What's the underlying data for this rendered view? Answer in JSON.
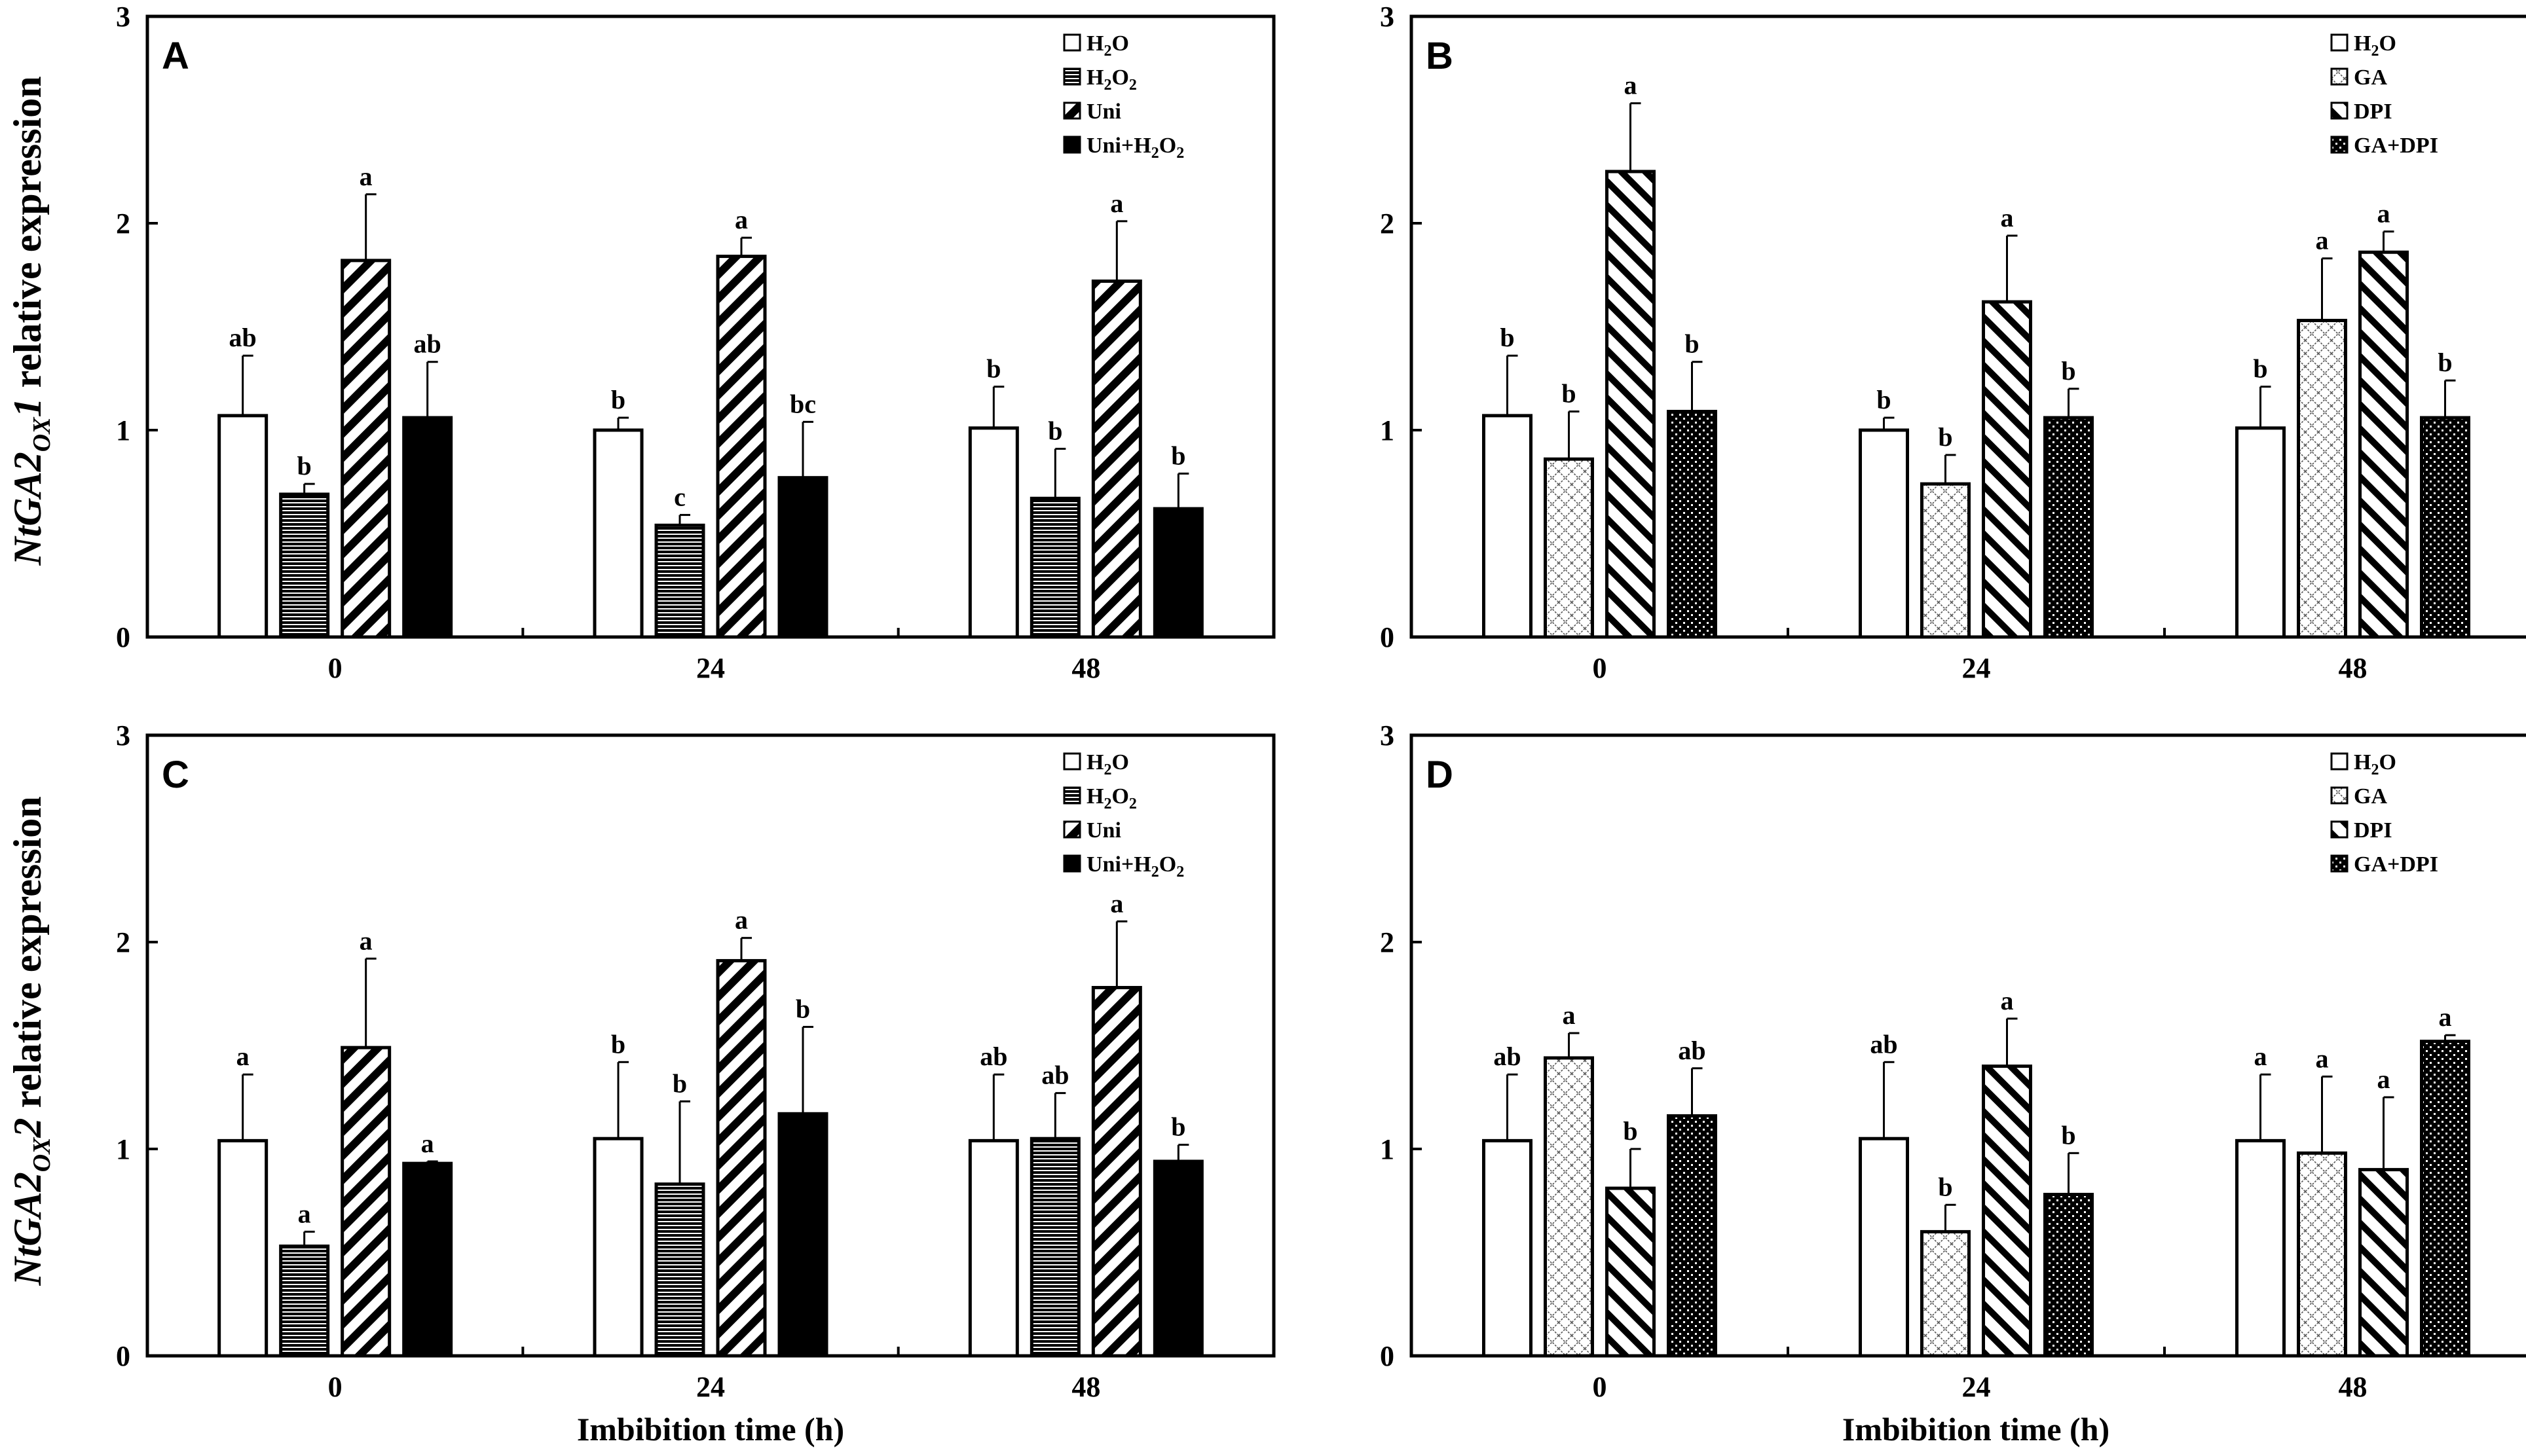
{
  "figure": {
    "ylabel_top": {
      "prefix": "NtGA2",
      "sub": "OX",
      "suffix": "1",
      "rest": " relative expression"
    },
    "ylabel_bottom": {
      "prefix": "NtGA2",
      "sub": "OX",
      "suffix": "2",
      "rest": " relative expression"
    },
    "xlabel": "Imbibition time (h)"
  },
  "chart_data": [
    {
      "type": "bar",
      "panel": "A",
      "categories": [
        "0",
        "24",
        "48"
      ],
      "ylim": [
        0,
        3
      ],
      "yticks": [
        "0",
        "1",
        "2",
        "3"
      ],
      "legend_position": "top-right",
      "series": [
        {
          "name": "H₂O",
          "legend": {
            "parts": [
              {
                "t": "H"
              },
              {
                "t": "2",
                "sub": true
              },
              {
                "t": "O"
              }
            ]
          },
          "pattern": "white",
          "values": [
            1.07,
            1.0,
            1.01
          ],
          "errors": [
            0.29,
            0.06,
            0.2
          ],
          "letters": [
            "ab",
            "b",
            "b"
          ]
        },
        {
          "name": "H₂O₂",
          "legend": {
            "parts": [
              {
                "t": "H"
              },
              {
                "t": "2",
                "sub": true
              },
              {
                "t": "O"
              },
              {
                "t": "2",
                "sub": true
              }
            ]
          },
          "pattern": "hlines",
          "values": [
            0.69,
            0.54,
            0.67
          ],
          "errors": [
            0.05,
            0.05,
            0.24
          ],
          "letters": [
            "b",
            "c",
            "b"
          ]
        },
        {
          "name": "Uni",
          "legend": {
            "parts": [
              {
                "t": "Uni"
              }
            ]
          },
          "pattern": "diag-right",
          "values": [
            1.82,
            1.84,
            1.72
          ],
          "errors": [
            0.32,
            0.09,
            0.29
          ],
          "letters": [
            "a",
            "a",
            "a"
          ]
        },
        {
          "name": "Uni+H₂O₂",
          "legend": {
            "parts": [
              {
                "t": "Uni+H"
              },
              {
                "t": "2",
                "sub": true
              },
              {
                "t": "O"
              },
              {
                "t": "2",
                "sub": true
              }
            ]
          },
          "pattern": "black",
          "values": [
            1.06,
            0.77,
            0.62
          ],
          "errors": [
            0.27,
            0.27,
            0.17
          ],
          "letters": [
            "ab",
            "bc",
            "b"
          ]
        }
      ]
    },
    {
      "type": "bar",
      "panel": "B",
      "categories": [
        "0",
        "24",
        "48"
      ],
      "ylim": [
        0,
        3
      ],
      "yticks": [
        "0",
        "1",
        "2",
        "3"
      ],
      "legend_position": "top-right",
      "series": [
        {
          "name": "H₂O",
          "legend": {
            "parts": [
              {
                "t": "H"
              },
              {
                "t": "2",
                "sub": true
              },
              {
                "t": "O"
              }
            ]
          },
          "pattern": "white",
          "values": [
            1.07,
            1.0,
            1.01
          ],
          "errors": [
            0.29,
            0.06,
            0.2
          ],
          "letters": [
            "b",
            "b",
            "b"
          ]
        },
        {
          "name": "GA",
          "legend": {
            "parts": [
              {
                "t": "GA"
              }
            ]
          },
          "pattern": "crosshatch",
          "values": [
            0.86,
            0.74,
            1.53
          ],
          "errors": [
            0.23,
            0.14,
            0.3
          ],
          "letters": [
            "b",
            "b",
            "a"
          ]
        },
        {
          "name": "DPI",
          "legend": {
            "parts": [
              {
                "t": "DPI"
              }
            ]
          },
          "pattern": "diag-left",
          "values": [
            2.25,
            1.62,
            1.86
          ],
          "errors": [
            0.33,
            0.32,
            0.1
          ],
          "letters": [
            "a",
            "a",
            "a"
          ]
        },
        {
          "name": "GA+DPI",
          "legend": {
            "parts": [
              {
                "t": "GA+DPI"
              }
            ]
          },
          "pattern": "dots",
          "values": [
            1.09,
            1.06,
            1.06
          ],
          "errors": [
            0.24,
            0.14,
            0.18
          ],
          "letters": [
            "b",
            "b",
            "b"
          ]
        }
      ]
    },
    {
      "type": "bar",
      "panel": "C",
      "categories": [
        "0",
        "24",
        "48"
      ],
      "ylim": [
        0,
        3
      ],
      "yticks": [
        "0",
        "1",
        "2",
        "3"
      ],
      "legend_position": "top-right",
      "series": [
        {
          "name": "H₂O",
          "legend": {
            "parts": [
              {
                "t": "H"
              },
              {
                "t": "2",
                "sub": true
              },
              {
                "t": "O"
              }
            ]
          },
          "pattern": "white",
          "values": [
            1.04,
            1.05,
            1.04
          ],
          "errors": [
            0.32,
            0.37,
            0.32
          ],
          "letters": [
            "a",
            "b",
            "ab"
          ]
        },
        {
          "name": "H₂O₂",
          "legend": {
            "parts": [
              {
                "t": "H"
              },
              {
                "t": "2",
                "sub": true
              },
              {
                "t": "O"
              },
              {
                "t": "2",
                "sub": true
              }
            ]
          },
          "pattern": "hlines",
          "values": [
            0.53,
            0.83,
            1.05
          ],
          "errors": [
            0.07,
            0.4,
            0.22
          ],
          "letters": [
            "a",
            "b",
            "ab"
          ]
        },
        {
          "name": "Uni",
          "legend": {
            "parts": [
              {
                "t": "Uni"
              }
            ]
          },
          "pattern": "diag-right",
          "values": [
            1.49,
            1.91,
            1.78
          ],
          "errors": [
            0.43,
            0.11,
            0.32
          ],
          "letters": [
            "a",
            "a",
            "a"
          ]
        },
        {
          "name": "Uni+H₂O₂",
          "legend": {
            "parts": [
              {
                "t": "Uni+H"
              },
              {
                "t": "2",
                "sub": true
              },
              {
                "t": "O"
              },
              {
                "t": "2",
                "sub": true
              }
            ]
          },
          "pattern": "black",
          "values": [
            0.93,
            1.17,
            0.94
          ],
          "errors": [
            0.01,
            0.42,
            0.08
          ],
          "letters": [
            "a",
            "b",
            "b"
          ]
        }
      ]
    },
    {
      "type": "bar",
      "panel": "D",
      "categories": [
        "0",
        "24",
        "48"
      ],
      "ylim": [
        0,
        3
      ],
      "yticks": [
        "0",
        "1",
        "2",
        "3"
      ],
      "legend_position": "top-right",
      "series": [
        {
          "name": "H₂O",
          "legend": {
            "parts": [
              {
                "t": "H"
              },
              {
                "t": "2",
                "sub": true
              },
              {
                "t": "O"
              }
            ]
          },
          "pattern": "white",
          "values": [
            1.04,
            1.05,
            1.04
          ],
          "errors": [
            0.32,
            0.37,
            0.32
          ],
          "letters": [
            "ab",
            "ab",
            "a"
          ]
        },
        {
          "name": "GA",
          "legend": {
            "parts": [
              {
                "t": "GA"
              }
            ]
          },
          "pattern": "crosshatch",
          "values": [
            1.44,
            0.6,
            0.98
          ],
          "errors": [
            0.12,
            0.13,
            0.37
          ],
          "letters": [
            "a",
            "b",
            "a"
          ]
        },
        {
          "name": "DPI",
          "legend": {
            "parts": [
              {
                "t": "DPI"
              }
            ]
          },
          "pattern": "diag-left",
          "values": [
            0.81,
            1.4,
            0.9
          ],
          "errors": [
            0.19,
            0.23,
            0.35
          ],
          "letters": [
            "b",
            "a",
            "a"
          ]
        },
        {
          "name": "GA+DPI",
          "legend": {
            "parts": [
              {
                "t": "GA+DPI"
              }
            ]
          },
          "pattern": "dots",
          "values": [
            1.16,
            0.78,
            1.52
          ],
          "errors": [
            0.23,
            0.2,
            0.03
          ],
          "letters": [
            "ab",
            "b",
            "a"
          ]
        }
      ]
    }
  ]
}
